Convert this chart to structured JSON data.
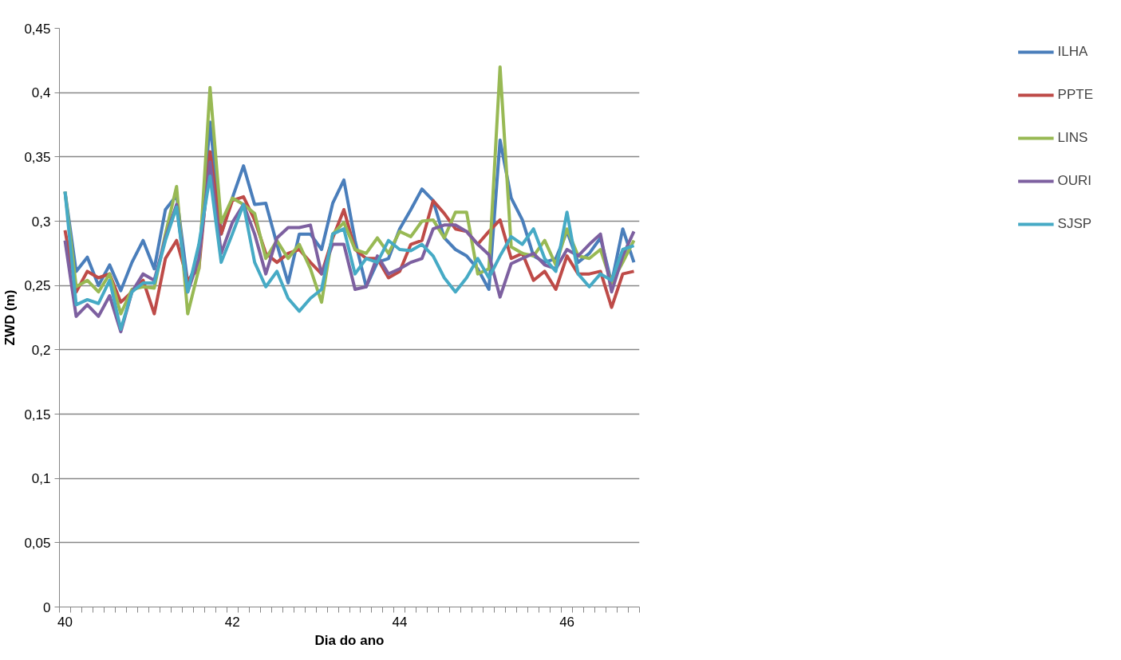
{
  "chart_data": {
    "type": "line",
    "xlabel": "Dia do ano",
    "ylabel": "ZWD (m)",
    "categories": [
      "40",
      null,
      null,
      null,
      null,
      null,
      null,
      null,
      null,
      null,
      null,
      null,
      null,
      null,
      null,
      "42",
      null,
      null,
      null,
      null,
      null,
      null,
      null,
      null,
      null,
      null,
      null,
      null,
      null,
      null,
      "44",
      null,
      null,
      null,
      null,
      null,
      null,
      null,
      null,
      null,
      null,
      null,
      null,
      null,
      null,
      "46",
      null,
      null,
      null,
      null,
      null,
      null
    ],
    "ylim": [
      0,
      0.45
    ],
    "yticks": [
      {
        "value": 0,
        "label": "0"
      },
      {
        "value": 0.05,
        "label": "0,05"
      },
      {
        "value": 0.1,
        "label": "0,1"
      },
      {
        "value": 0.15,
        "label": "0,15"
      },
      {
        "value": 0.2,
        "label": "0,2"
      },
      {
        "value": 0.25,
        "label": "0,25"
      },
      {
        "value": 0.3,
        "label": "0,3"
      },
      {
        "value": 0.35,
        "label": "0,35"
      },
      {
        "value": 0.4,
        "label": "0,4"
      },
      {
        "value": 0.45,
        "label": "0,45"
      }
    ],
    "grid": "y",
    "legend": "right",
    "marker": "none",
    "line_style": "solid",
    "series": [
      {
        "name": "ILHA",
        "color": "#4a7ebb",
        "values": [
          0.323,
          0.261,
          0.272,
          0.25,
          0.266,
          0.246,
          0.268,
          0.285,
          0.263,
          0.309,
          0.32,
          0.252,
          0.27,
          0.377,
          0.29,
          0.318,
          0.343,
          0.313,
          0.314,
          0.282,
          0.252,
          0.29,
          0.29,
          0.278,
          0.314,
          0.332,
          0.285,
          0.249,
          0.268,
          0.271,
          0.294,
          0.309,
          0.325,
          0.316,
          0.287,
          0.278,
          0.273,
          0.263,
          0.247,
          0.363,
          0.318,
          0.301,
          0.273,
          0.268,
          0.271,
          0.292,
          0.268,
          0.275,
          0.287,
          0.252,
          0.294,
          0.268
        ]
      },
      {
        "name": "PPTE",
        "color": "#be4b48",
        "values": [
          0.293,
          0.245,
          0.261,
          0.256,
          0.259,
          0.237,
          0.245,
          0.254,
          0.228,
          0.271,
          0.285,
          0.254,
          0.263,
          0.354,
          0.29,
          0.316,
          0.319,
          0.301,
          0.275,
          0.268,
          0.275,
          0.278,
          0.268,
          0.259,
          0.287,
          0.309,
          0.278,
          0.271,
          0.271,
          0.256,
          0.261,
          0.282,
          0.285,
          0.316,
          0.306,
          0.294,
          0.292,
          0.282,
          0.292,
          0.301,
          0.271,
          0.275,
          0.254,
          0.261,
          0.247,
          0.273,
          0.259,
          0.259,
          0.261,
          0.233,
          0.259,
          0.261
        ]
      },
      {
        "name": "LINS",
        "color": "#98b954",
        "values": [
          0.323,
          0.249,
          0.254,
          0.245,
          0.259,
          0.228,
          0.247,
          0.249,
          0.248,
          0.29,
          0.327,
          0.228,
          0.263,
          0.404,
          0.299,
          0.318,
          0.313,
          0.306,
          0.271,
          0.285,
          0.271,
          0.282,
          0.263,
          0.237,
          0.29,
          0.299,
          0.278,
          0.275,
          0.287,
          0.275,
          0.292,
          0.288,
          0.3,
          0.301,
          0.287,
          0.307,
          0.307,
          0.259,
          0.263,
          0.42,
          0.28,
          0.275,
          0.273,
          0.285,
          0.266,
          0.294,
          0.273,
          0.271,
          0.278,
          0.252,
          0.268,
          0.285
        ]
      },
      {
        "name": "OURI",
        "color": "#7d60a0",
        "values": [
          0.285,
          0.226,
          0.235,
          0.226,
          0.242,
          0.214,
          0.245,
          0.259,
          0.254,
          0.287,
          0.313,
          0.245,
          0.271,
          0.346,
          0.275,
          0.299,
          0.313,
          0.29,
          0.259,
          0.287,
          0.295,
          0.295,
          0.297,
          0.259,
          0.282,
          0.282,
          0.247,
          0.249,
          0.273,
          0.259,
          0.263,
          0.268,
          0.271,
          0.294,
          0.297,
          0.297,
          0.292,
          0.282,
          0.274,
          0.241,
          0.267,
          0.271,
          0.275,
          0.266,
          0.263,
          0.278,
          0.273,
          0.282,
          0.29,
          0.245,
          0.273,
          0.292
        ]
      },
      {
        "name": "SJSP",
        "color": "#46aac5",
        "values": [
          0.323,
          0.235,
          0.239,
          0.236,
          0.254,
          0.216,
          0.245,
          0.252,
          0.252,
          0.285,
          0.311,
          0.245,
          0.282,
          0.335,
          0.268,
          0.29,
          0.313,
          0.268,
          0.249,
          0.261,
          0.24,
          0.23,
          0.24,
          0.247,
          0.29,
          0.294,
          0.259,
          0.271,
          0.268,
          0.285,
          0.278,
          0.277,
          0.282,
          0.273,
          0.256,
          0.245,
          0.256,
          0.271,
          0.256,
          0.273,
          0.288,
          0.282,
          0.294,
          0.271,
          0.261,
          0.307,
          0.259,
          0.249,
          0.259,
          0.254,
          0.278,
          0.281
        ]
      }
    ]
  }
}
